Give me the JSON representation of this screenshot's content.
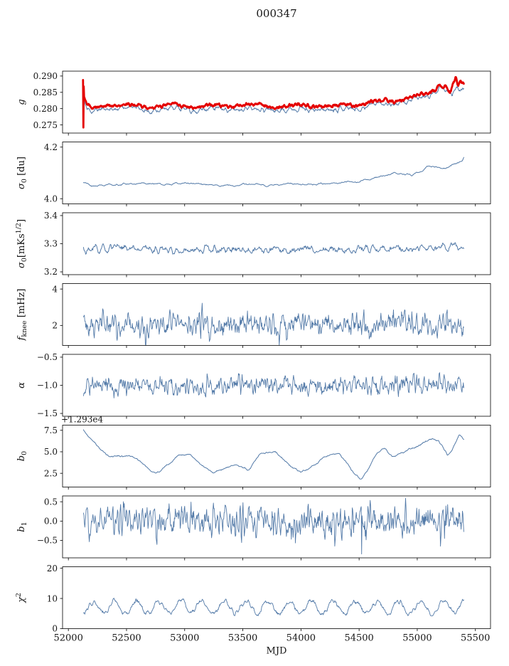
{
  "title": "000347",
  "xlabel": "MJD",
  "colors": {
    "line": "#537aa8",
    "highlight": "#e40000",
    "axis": "#000000",
    "background": "#ffffff"
  },
  "x_axis": {
    "min": 51950,
    "max": 55630,
    "ticks": [
      52000,
      52500,
      53000,
      53500,
      54000,
      54500,
      55000,
      55500
    ],
    "tick_labels": [
      "52000",
      "52500",
      "53000",
      "53500",
      "54000",
      "54500",
      "55000",
      "55500"
    ]
  },
  "chart_data": [
    {
      "type": "line",
      "name": "g",
      "ylabel_parts": [
        {
          "t": "g",
          "style": "italic"
        }
      ],
      "ylim": [
        0.2725,
        0.2915
      ],
      "yticks": [
        0.275,
        0.28,
        0.285,
        0.29
      ],
      "ytick_labels": [
        "0.275",
        "0.280",
        "0.285",
        "0.290"
      ],
      "series": [
        {
          "name": "g-fit",
          "color": "#537aa8",
          "width": 1.0,
          "samples": 800,
          "seed": 11,
          "noise": 0.0016,
          "smooth": 2,
          "spiky": false,
          "keys": [
            [
              52130,
              0.2825
            ],
            [
              52160,
              0.28
            ],
            [
              52200,
              0.2792
            ],
            [
              52300,
              0.28
            ],
            [
              52400,
              0.2798
            ],
            [
              52500,
              0.2806
            ],
            [
              52600,
              0.2802
            ],
            [
              52700,
              0.2788
            ],
            [
              52800,
              0.28
            ],
            [
              52900,
              0.2805
            ],
            [
              53000,
              0.2798
            ],
            [
              53100,
              0.2792
            ],
            [
              53200,
              0.2803
            ],
            [
              53300,
              0.28
            ],
            [
              53400,
              0.2795
            ],
            [
              53500,
              0.28
            ],
            [
              53600,
              0.2805
            ],
            [
              53700,
              0.2798
            ],
            [
              53800,
              0.2793
            ],
            [
              53900,
              0.28
            ],
            [
              54000,
              0.2802
            ],
            [
              54100,
              0.2795
            ],
            [
              54200,
              0.2797
            ],
            [
              54300,
              0.28
            ],
            [
              54400,
              0.2803
            ],
            [
              54500,
              0.2798
            ],
            [
              54600,
              0.2813
            ],
            [
              54700,
              0.2818
            ],
            [
              54800,
              0.2812
            ],
            [
              54900,
              0.282
            ],
            [
              55000,
              0.2832
            ],
            [
              55100,
              0.2838
            ],
            [
              55150,
              0.285
            ],
            [
              55200,
              0.2862
            ],
            [
              55250,
              0.2855
            ],
            [
              55300,
              0.2845
            ],
            [
              55330,
              0.287
            ],
            [
              55360,
              0.2862
            ],
            [
              55400,
              0.2865
            ]
          ]
        },
        {
          "name": "g-raw",
          "color": "#e40000",
          "width": 2.8,
          "samples": 1100,
          "seed": 12,
          "noise": 0.001,
          "smooth": 2,
          "spiky": false,
          "keys": [
            [
              52126,
              0.2852
            ],
            [
              52140,
              0.2832
            ],
            [
              52160,
              0.2812
            ],
            [
              52200,
              0.2805
            ],
            [
              52300,
              0.281
            ],
            [
              52400,
              0.2808
            ],
            [
              52500,
              0.2815
            ],
            [
              52600,
              0.2812
            ],
            [
              52700,
              0.28
            ],
            [
              52800,
              0.281
            ],
            [
              52900,
              0.2815
            ],
            [
              53000,
              0.2808
            ],
            [
              53100,
              0.2802
            ],
            [
              53200,
              0.2812
            ],
            [
              53300,
              0.281
            ],
            [
              53400,
              0.2806
            ],
            [
              53500,
              0.281
            ],
            [
              53600,
              0.2815
            ],
            [
              53700,
              0.2808
            ],
            [
              53800,
              0.2804
            ],
            [
              53900,
              0.281
            ],
            [
              54000,
              0.2812
            ],
            [
              54100,
              0.2806
            ],
            [
              54200,
              0.2808
            ],
            [
              54300,
              0.281
            ],
            [
              54400,
              0.2813
            ],
            [
              54500,
              0.2808
            ],
            [
              54600,
              0.2822
            ],
            [
              54700,
              0.2827
            ],
            [
              54800,
              0.2822
            ],
            [
              54900,
              0.283
            ],
            [
              55000,
              0.2842
            ],
            [
              55100,
              0.2848
            ],
            [
              55150,
              0.2858
            ],
            [
              55200,
              0.2872
            ],
            [
              55250,
              0.2865
            ],
            [
              55280,
              0.2848
            ],
            [
              55310,
              0.288
            ],
            [
              55330,
              0.2895
            ],
            [
              55350,
              0.287
            ],
            [
              55370,
              0.2885
            ],
            [
              55400,
              0.2872
            ]
          ],
          "spikes": [
            [
              52127,
              0.2888
            ],
            [
              52130,
              0.2742
            ],
            [
              52133,
              0.2868
            ]
          ]
        }
      ]
    },
    {
      "type": "line",
      "name": "sigma0_du",
      "ylabel_parts": [
        {
          "t": "σ",
          "style": "italic"
        },
        {
          "t": "0",
          "style": "sub"
        },
        {
          "t": " [du]",
          "style": "normal"
        }
      ],
      "ylim": [
        3.98,
        4.22
      ],
      "yticks": [
        4.0,
        4.2
      ],
      "ytick_labels": [
        "4.0",
        "4.2"
      ],
      "series": [
        {
          "name": "sigma0-du",
          "color": "#537aa8",
          "width": 1.0,
          "samples": 600,
          "seed": 21,
          "noise": 0.011,
          "smooth": 3,
          "spiky": false,
          "keys": [
            [
              52130,
              4.065
            ],
            [
              52200,
              4.05
            ],
            [
              52350,
              4.053
            ],
            [
              52500,
              4.058
            ],
            [
              52650,
              4.06
            ],
            [
              52800,
              4.055
            ],
            [
              52950,
              4.06
            ],
            [
              53100,
              4.056
            ],
            [
              53300,
              4.05
            ],
            [
              53500,
              4.057
            ],
            [
              53700,
              4.052
            ],
            [
              53900,
              4.06
            ],
            [
              54100,
              4.055
            ],
            [
              54300,
              4.06
            ],
            [
              54500,
              4.068
            ],
            [
              54650,
              4.08
            ],
            [
              54750,
              4.095
            ],
            [
              54850,
              4.1
            ],
            [
              54950,
              4.092
            ],
            [
              55050,
              4.11
            ],
            [
              55100,
              4.128
            ],
            [
              55150,
              4.122
            ],
            [
              55250,
              4.118
            ],
            [
              55300,
              4.13
            ],
            [
              55350,
              4.138
            ],
            [
              55390,
              4.145
            ],
            [
              55400,
              4.158
            ]
          ]
        }
      ]
    },
    {
      "type": "line",
      "name": "sigma0_mks",
      "ylabel_parts": [
        {
          "t": "σ",
          "style": "italic"
        },
        {
          "t": "0",
          "style": "sub"
        },
        {
          "t": "[mKs",
          "style": "normal"
        },
        {
          "t": "1/2",
          "style": "sup"
        },
        {
          "t": "]",
          "style": "normal"
        }
      ],
      "ylim": [
        3.19,
        3.41
      ],
      "yticks": [
        3.2,
        3.3,
        3.4
      ],
      "ytick_labels": [
        "3.2",
        "3.3",
        "3.4"
      ],
      "series": [
        {
          "name": "sigma0-mks",
          "color": "#537aa8",
          "width": 1.0,
          "samples": 700,
          "seed": 31,
          "noise": 0.03,
          "smooth": 2,
          "spiky": false,
          "keys": [
            [
              52130,
              3.272
            ],
            [
              52300,
              3.28
            ],
            [
              52600,
              3.286
            ],
            [
              52900,
              3.278
            ],
            [
              53200,
              3.282
            ],
            [
              53500,
              3.28
            ],
            [
              53800,
              3.279
            ],
            [
              54100,
              3.281
            ],
            [
              54400,
              3.278
            ],
            [
              54700,
              3.28
            ],
            [
              55000,
              3.282
            ],
            [
              55200,
              3.284
            ],
            [
              55320,
              3.292
            ],
            [
              55400,
              3.28
            ]
          ]
        }
      ]
    },
    {
      "type": "line",
      "name": "f_knee",
      "ylabel_parts": [
        {
          "t": "f",
          "style": "italic"
        },
        {
          "t": "knee",
          "style": "sub"
        },
        {
          "t": " [mHz]",
          "style": "normal"
        }
      ],
      "ylim": [
        0.9,
        4.3
      ],
      "yticks": [
        2,
        4
      ],
      "ytick_labels": [
        "2",
        "4"
      ],
      "series": [
        {
          "name": "fknee",
          "color": "#537aa8",
          "width": 0.9,
          "samples": 850,
          "seed": 41,
          "noise": 0.85,
          "smooth": 1,
          "spiky": true,
          "keys": [
            [
              52130,
              2.05
            ],
            [
              53000,
              2.0
            ],
            [
              54000,
              2.05
            ],
            [
              55000,
              2.0
            ],
            [
              55400,
              2.0
            ]
          ]
        }
      ]
    },
    {
      "type": "line",
      "name": "alpha",
      "ylabel_parts": [
        {
          "t": "α",
          "style": "italic"
        }
      ],
      "ylim": [
        -1.55,
        -0.45
      ],
      "yticks": [
        -1.5,
        -1.0,
        -0.5
      ],
      "ytick_labels": [
        "−1.5",
        "−1.0",
        "−0.5"
      ],
      "series": [
        {
          "name": "alpha",
          "color": "#537aa8",
          "width": 0.9,
          "samples": 850,
          "seed": 51,
          "noise": 0.24,
          "smooth": 1,
          "spiky": false,
          "keys": [
            [
              52130,
              -1.0
            ],
            [
              53500,
              -1.0
            ],
            [
              55400,
              -1.0
            ]
          ]
        }
      ]
    },
    {
      "type": "line",
      "name": "b0",
      "ylabel_parts": [
        {
          "t": "b",
          "style": "italic"
        },
        {
          "t": "0",
          "style": "sub"
        }
      ],
      "ylim": [
        0.9,
        8.1
      ],
      "yticks": [
        2.5,
        5.0,
        7.5
      ],
      "ytick_labels": [
        "2.5",
        "5.0",
        "7.5"
      ],
      "offset_text": "+1.293e4",
      "series": [
        {
          "name": "b0",
          "color": "#537aa8",
          "width": 1.0,
          "samples": 600,
          "seed": 61,
          "noise": 0.45,
          "smooth": 4,
          "spiky": false,
          "keys": [
            [
              52130,
              7.5
            ],
            [
              52200,
              6.3
            ],
            [
              52280,
              5.2
            ],
            [
              52350,
              4.5
            ],
            [
              52450,
              4.4
            ],
            [
              52550,
              4.5
            ],
            [
              52650,
              3.6
            ],
            [
              52750,
              2.5
            ],
            [
              52850,
              3.4
            ],
            [
              52950,
              4.5
            ],
            [
              53050,
              4.6
            ],
            [
              53150,
              3.3
            ],
            [
              53250,
              2.6
            ],
            [
              53350,
              3.2
            ],
            [
              53450,
              3.4
            ],
            [
              53550,
              2.9
            ],
            [
              53650,
              4.8
            ],
            [
              53780,
              5.0
            ],
            [
              53900,
              3.4
            ],
            [
              54000,
              2.6
            ],
            [
              54100,
              3.3
            ],
            [
              54250,
              4.7
            ],
            [
              54330,
              4.9
            ],
            [
              54450,
              2.6
            ],
            [
              54520,
              1.8
            ],
            [
              54650,
              4.7
            ],
            [
              54720,
              5.3
            ],
            [
              54800,
              4.4
            ],
            [
              54900,
              5.1
            ],
            [
              55000,
              5.6
            ],
            [
              55100,
              6.4
            ],
            [
              55180,
              6.3
            ],
            [
              55260,
              4.6
            ],
            [
              55300,
              5.2
            ],
            [
              55360,
              7.1
            ],
            [
              55400,
              6.4
            ]
          ]
        }
      ]
    },
    {
      "type": "line",
      "name": "b1",
      "ylabel_parts": [
        {
          "t": "b",
          "style": "italic"
        },
        {
          "t": "1",
          "style": "sub"
        }
      ],
      "ylim": [
        -0.95,
        0.65
      ],
      "yticks": [
        -0.5,
        0.0,
        0.5
      ],
      "ytick_labels": [
        "−0.5",
        "0.0",
        "0.5"
      ],
      "series": [
        {
          "name": "b1",
          "color": "#537aa8",
          "width": 0.9,
          "samples": 850,
          "seed": 71,
          "noise": 0.52,
          "smooth": 1,
          "spiky": true,
          "keys": [
            [
              52130,
              0.02
            ],
            [
              53500,
              0.0
            ],
            [
              55400,
              0.0
            ]
          ],
          "spikes": [
            [
              54520,
              -0.85
            ]
          ]
        }
      ]
    },
    {
      "type": "line",
      "name": "chi2",
      "ylabel_parts": [
        {
          "t": "χ",
          "style": "italic"
        },
        {
          "t": "2",
          "style": "sup"
        }
      ],
      "ylim": [
        0,
        20.5
      ],
      "yticks": [
        0,
        10,
        20
      ],
      "ytick_labels": [
        "0",
        "10",
        "20"
      ],
      "series": [
        {
          "name": "chi2",
          "color": "#537aa8",
          "width": 0.9,
          "samples": 850,
          "seed": 81,
          "noise": 1.8,
          "smooth": 2,
          "spiky": false,
          "keys": [
            [
              52130,
              7.0
            ],
            [
              53000,
              7.2
            ],
            [
              54000,
              7.0
            ],
            [
              55000,
              7.0
            ],
            [
              55400,
              7.6
            ]
          ],
          "osc": {
            "period": 188,
            "amp": 2.0,
            "phase": -1.2
          }
        }
      ]
    }
  ]
}
